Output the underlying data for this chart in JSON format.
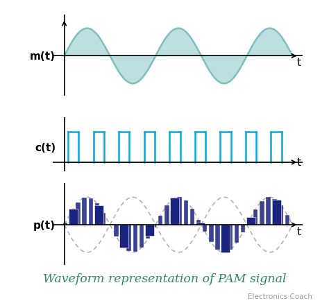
{
  "bg_color": "#ffffff",
  "title": "Waveform representation of PAM signal",
  "title_color": "#2e8b57",
  "title_fontsize": 12.5,
  "watermark": "Electronics Coach",
  "watermark_color": "#999999",
  "label_color": "#000000",
  "axis_color": "#000000",
  "mt_label": "m(t)",
  "ct_label": "c(t)",
  "pt_label": "p(t)",
  "t_label": "t",
  "sine_color": "#7fbfbf",
  "sine_fill_color": "#a8d5d5",
  "pulse_color": "#00aadd",
  "pam_bar_color": "#1a237e",
  "pam_envelope_color": "#999999",
  "num_sine_cycles": 2.5,
  "num_pulses": 9,
  "pulse_duty": 0.42
}
